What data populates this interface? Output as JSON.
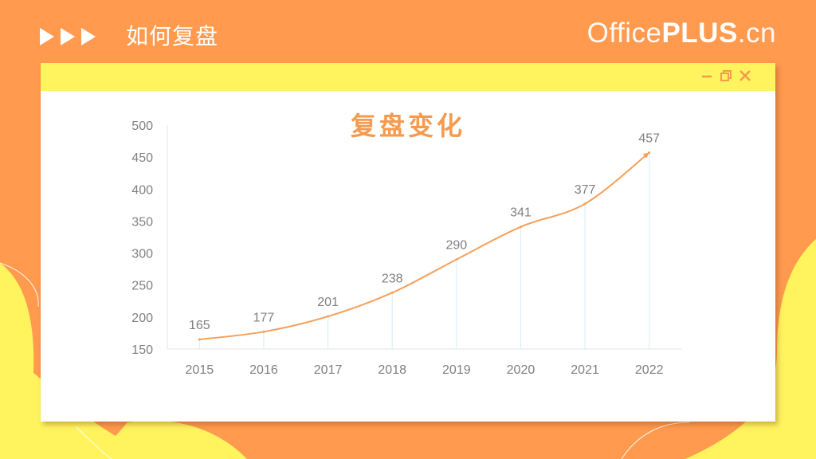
{
  "header": {
    "title": "如何复盘",
    "brand_thin": "Office",
    "brand_bold": "PLUS",
    "brand_suffix": ".cn"
  },
  "window_controls": [
    "minimize-icon",
    "restore-icon",
    "close-icon"
  ],
  "colors": {
    "background": "#ff9a4e",
    "accent_yellow": "#fff35e",
    "line": "#f5a05a",
    "title": "#f59a4e",
    "axis_text": "#808080",
    "drop_lines": "#d6ecf5"
  },
  "chart_data": {
    "type": "line",
    "title": "复盘变化",
    "xlabel": "",
    "ylabel": "",
    "categories": [
      "2015",
      "2016",
      "2017",
      "2018",
      "2019",
      "2020",
      "2021",
      "2022"
    ],
    "values": [
      165,
      177,
      201,
      238,
      290,
      341,
      377,
      457
    ],
    "ylim": [
      150,
      500
    ],
    "yticks": [
      150,
      200,
      250,
      300,
      350,
      400,
      450,
      500
    ],
    "smooth": true,
    "data_labels": true,
    "drop_lines": true,
    "legend": "none",
    "grid": false
  }
}
